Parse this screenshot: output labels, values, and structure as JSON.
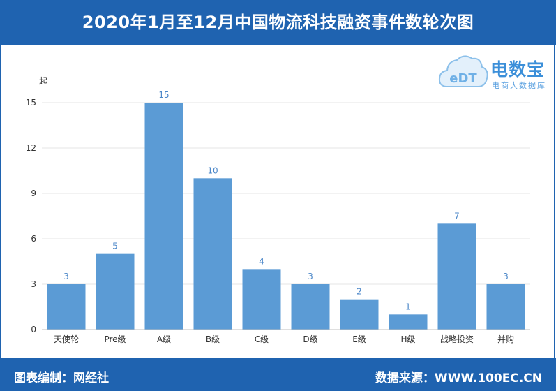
{
  "header": {
    "title": "2020年1月至12月中国物流科技融资事件数轮次图"
  },
  "footer": {
    "left": "图表编制：网经社",
    "right": "数据来源：WWW.100EC.CN"
  },
  "logo": {
    "main": "电数宝",
    "sub": "电商大数据库",
    "mark": "eDT"
  },
  "chart_data": {
    "type": "bar",
    "title": "2020年1月至12月中国物流科技融资事件数轮次图",
    "ylabel": "起",
    "xlabel": "",
    "categories": [
      "天使轮",
      "Pre级",
      "A级",
      "B级",
      "C级",
      "D级",
      "E级",
      "H级",
      "战略投资",
      "并购"
    ],
    "values": [
      3,
      5,
      15,
      10,
      4,
      3,
      2,
      1,
      7,
      3
    ],
    "ylim": [
      0,
      15
    ],
    "yticks": [
      0,
      3,
      6,
      9,
      12,
      15
    ],
    "grid": true,
    "bar_color": "#5b9bd5",
    "data_labels": true
  }
}
